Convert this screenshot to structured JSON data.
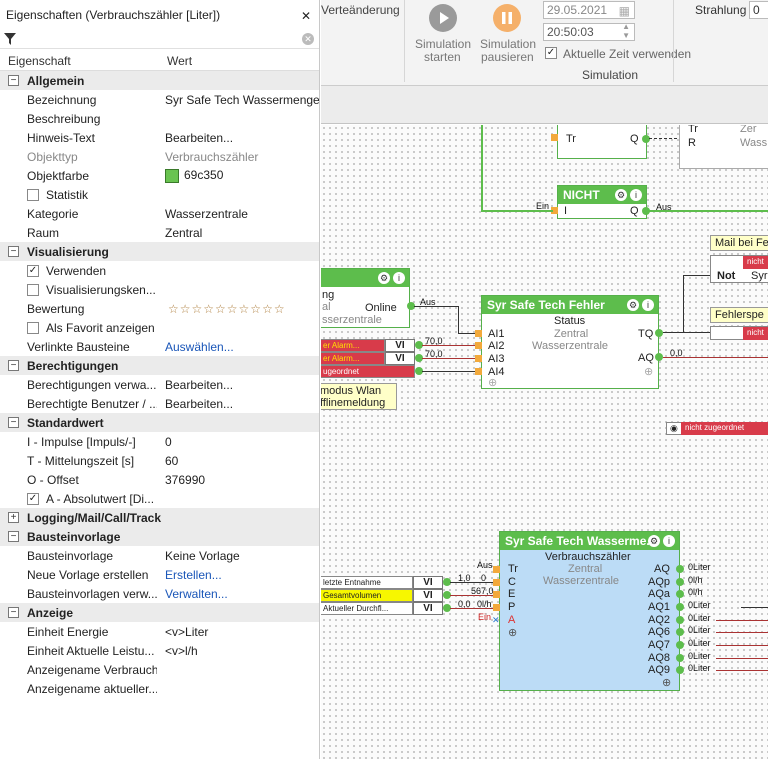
{
  "panel": {
    "title": "Eigenschaften (Verbrauchszähler [Liter])",
    "close": "✕",
    "col_property": "Eigenschaft",
    "col_value": "Wert",
    "cat_allgemein": "Allgemein",
    "bezeichnung": "Bezeichnung",
    "bezeichnung_v": "Syr Safe Tech Wassermenge",
    "beschreibung": "Beschreibung",
    "hinweis": "Hinweis-Text",
    "hinweis_v": "Bearbeiten...",
    "objekttyp": "Objekttyp",
    "objekttyp_v": "Verbrauchszähler",
    "objektfarbe": "Objektfarbe",
    "objektfarbe_v": "69c350",
    "statistik": "Statistik",
    "kategorie": "Kategorie",
    "kategorie_v": "Wasserzentrale",
    "raum": "Raum",
    "raum_v": "Zentral",
    "cat_visualisierung": "Visualisierung",
    "verwenden": "Verwenden",
    "viskenn": "Visualisierungsken...",
    "bewertung": "Bewertung",
    "stars": "☆☆☆☆☆☆☆☆☆☆",
    "favorit": "Als Favorit anzeigen",
    "verlinkt": "Verlinkte Bausteine",
    "verlinkt_v": "Auswählen...",
    "cat_berechtigungen": "Berechtigungen",
    "berverw": "Berechtigungen verwa...",
    "berverw_v": "Bearbeiten...",
    "berben": "Berechtigte Benutzer / ...",
    "berben_v": "Bearbeiten...",
    "cat_standardwert": "Standardwert",
    "impulse": "I - Impulse [Impuls/-]",
    "impulse_v": "0",
    "mittel": "T - Mittelungszeit [s]",
    "mittel_v": "60",
    "offset": "O - Offset",
    "offset_v": "376990",
    "absolut": "A - Absolutwert [Di...",
    "cat_logging": "Logging/Mail/Call/Track",
    "cat_bausteinvorlage": "Bausteinvorlage",
    "bvorlage": "Bausteinvorlage",
    "bvorlage_v": "Keine Vorlage",
    "neuevorlage": "Neue Vorlage erstellen",
    "neuevorlage_v": "Erstellen...",
    "bvverw": "Bausteinvorlagen verw...",
    "bvverw_v": "Verwalten...",
    "cat_anzeige": "Anzeige",
    "einheit_energie": "Einheit Energie",
    "einheit_energie_v": "<v>Liter",
    "einheit_leistung": "Einheit Aktuelle Leistu...",
    "einheit_leistung_v": "<v>l/h",
    "anz_verbrauch": "Anzeigename Verbrauch",
    "anz_aktuell": "Anzeigename aktueller..."
  },
  "ribbon": {
    "wertaenderung": "Verteänderung",
    "sim_start_1": "Simulation",
    "sim_start_2": "starten",
    "sim_pause_1": "Simulation",
    "sim_pause_2": "pausieren",
    "date": "29.05.2021",
    "time": "20:50:03",
    "aktuelle_zeit": "Aktuelle Zeit verwenden",
    "group": "Simulation",
    "strahlung": "Strahlung",
    "strahlung_v": "0"
  },
  "canvas": {
    "top_tr": "Tr",
    "top_q": "Q",
    "top_tr2": "Tr",
    "top_r": "R",
    "top_zer": "Zer",
    "top_wass": "Wass",
    "nicht_title": "NICHT",
    "nicht_i": "I",
    "nicht_q": "Q",
    "ein": "Ein",
    "aus": "Aus",
    "aus2": "Aus",
    "mail_title": "Mail bei Fe",
    "not": "Not",
    "syr": "Syr",
    "fehlersp": "Fehlerspe",
    "nicht_zug": "nicht",
    "leftblk_g": "ng",
    "leftblk_online": "Online",
    "leftblk_al": "al",
    "leftblk_wz": "sserzentrale",
    "alarm1": "er Alarm...",
    "alarm2": "er Alarm...",
    "zugeordnet": "ugeordnet",
    "v70a": "70,0",
    "v70b": "70,0",
    "note1": "modus Wlan",
    "note2": "fflinemeldung",
    "fehler_title": "Syr Safe Tech Fehler",
    "status": "Status",
    "zentral": "Zentral",
    "wz": "Wasserzentrale",
    "ai1": "AI1",
    "ai2": "AI2",
    "ai3": "AI3",
    "ai4": "AI4",
    "tq": "TQ",
    "aq": "AQ",
    "v00": "0,0",
    "nicht_zugeordnet": "nicht zugeordnet",
    "wm_title": "Syr Safe Tech Wasserme...",
    "wm_sub": "Verbrauchszähler",
    "wm_zentral": "Zentral",
    "wm_wz": "Wasserzentrale",
    "wm_tr": "Tr",
    "wm_c": "C",
    "wm_e": "E",
    "wm_p": "P",
    "wm_a": "A",
    "wm_aq": "AQ",
    "wm_aqp": "AQp",
    "wm_aqa": "AQa",
    "wm_aq1": "AQ1",
    "wm_aq2": "AQ2",
    "wm_aq6": "AQ6",
    "wm_aq7": "AQ7",
    "wm_aq8": "AQ8",
    "wm_aq9": "AQ9",
    "in1": "letzte Entnahme",
    "in2": "Gesamtvolumen",
    "in3": "Aktueller Durchfl...",
    "vi": "VI",
    "w_aus": "Aus",
    "w_10": "1,0",
    "w_0": "0",
    "w_5670": "567,0",
    "w_00": "0,0",
    "w_0lh": "0l/h",
    "w_ein": "Ein",
    "o1": "0Liter",
    "o2": "0l/h",
    "o3": "0l/h",
    "o4": "0Liter",
    "o5": "0Liter",
    "o6": "0Liter",
    "o7": "0Liter",
    "o8": "0Liter",
    "o9": "0Liter"
  },
  "colors": {
    "block_green": "#5dbd4c",
    "alarm_red": "#d83b4a",
    "link_blue": "#1a56b8",
    "object_color": "#69c350"
  }
}
